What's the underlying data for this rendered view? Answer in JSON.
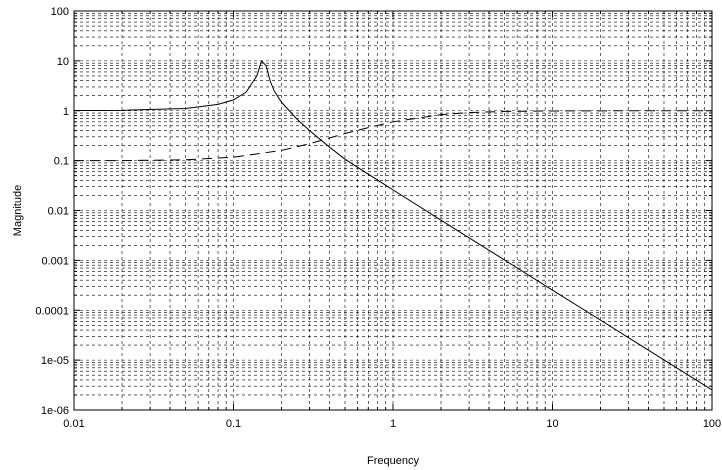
{
  "chart_data": {
    "type": "line",
    "title": "",
    "xlabel": "Frequency",
    "ylabel": "Magnitude",
    "xscale": "log",
    "yscale": "log",
    "xlim": [
      0.01,
      100
    ],
    "ylim": [
      1e-06,
      100
    ],
    "grid": true,
    "legend": "none",
    "x_ticks": [
      {
        "value": 0.01,
        "label": "0.01"
      },
      {
        "value": 0.1,
        "label": "0.1"
      },
      {
        "value": 1,
        "label": "1"
      },
      {
        "value": 10,
        "label": "10"
      },
      {
        "value": 100,
        "label": "100"
      }
    ],
    "y_ticks": [
      {
        "value": 1e-06,
        "label": "1e-06"
      },
      {
        "value": 1e-05,
        "label": "1e-05"
      },
      {
        "value": 0.0001,
        "label": "0.0001"
      },
      {
        "value": 0.001,
        "label": "0.001"
      },
      {
        "value": 0.01,
        "label": "0.01"
      },
      {
        "value": 0.1,
        "label": "0.1"
      },
      {
        "value": 1,
        "label": "1"
      },
      {
        "value": 10,
        "label": "10"
      },
      {
        "value": 100,
        "label": "100"
      }
    ],
    "series": [
      {
        "style": "solid",
        "color": "#000000",
        "x": [
          0.01,
          0.02,
          0.05,
          0.08,
          0.1,
          0.12,
          0.14,
          0.15,
          0.16,
          0.17,
          0.18,
          0.2,
          0.25,
          0.3,
          0.4,
          0.5,
          0.7,
          1,
          2,
          3,
          5,
          10,
          20,
          50,
          100
        ],
        "y": [
          1.01,
          1.02,
          1.11,
          1.34,
          1.65,
          2.36,
          5.0,
          10.0,
          8.0,
          3.9,
          2.5,
          1.48,
          0.68,
          0.4,
          0.186,
          0.107,
          0.0535,
          0.0259,
          0.00638,
          0.00283,
          0.00102,
          0.000253,
          6.34e-05,
          1.01e-05,
          2.53e-06
        ]
      },
      {
        "style": "dashed",
        "color": "#000000",
        "x": [
          0.01,
          0.02,
          0.05,
          0.1,
          0.2,
          0.3,
          0.5,
          0.7,
          1,
          2,
          3,
          5,
          10,
          20,
          50,
          100
        ],
        "y": [
          0.1,
          0.1,
          0.104,
          0.117,
          0.16,
          0.218,
          0.35,
          0.458,
          0.6,
          0.835,
          0.92,
          0.97,
          0.99,
          0.997,
          1.0,
          1.0
        ]
      }
    ]
  }
}
